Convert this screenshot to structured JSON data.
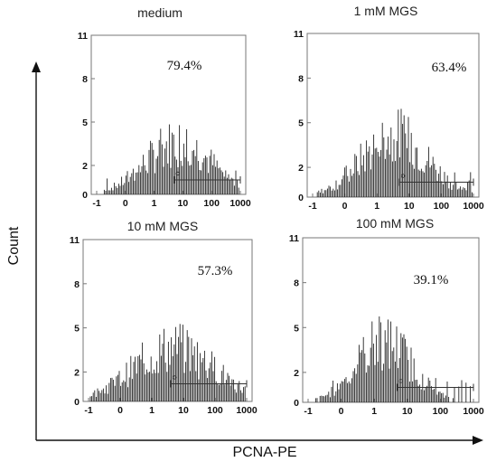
{
  "figure": {
    "ylabel": "Count",
    "xlabel": "PCNA-PE"
  },
  "chart_data": [
    {
      "type": "histogram",
      "title": "medium",
      "annotation": "79.4%",
      "x_scale": "log",
      "x_ticks": [
        "-1",
        "0",
        "1",
        "10",
        "100",
        "1000"
      ],
      "y_ticks": [
        0,
        2,
        5,
        8,
        11
      ],
      "ylim": [
        0,
        11
      ],
      "gate": {
        "from": 5,
        "to": 1000,
        "level": 1
      },
      "peak_x": 7,
      "peak_count": 4,
      "spread": 1.15
    },
    {
      "type": "histogram",
      "title": "1 mM MGS",
      "annotation": "63.4%",
      "x_scale": "log",
      "x_ticks": [
        "-1",
        "0",
        "1",
        "10",
        "100",
        "1000"
      ],
      "y_ticks": [
        0,
        2,
        5,
        8,
        11
      ],
      "ylim": [
        0,
        11
      ],
      "gate": {
        "from": 5,
        "to": 1000,
        "level": 1
      },
      "peak_x": 3.5,
      "peak_count": 4.5,
      "spread": 1.05
    },
    {
      "type": "histogram",
      "title": "10 mM MGS",
      "annotation": "57.3%",
      "x_scale": "log",
      "x_ticks": [
        "-1",
        "0",
        "1",
        "10",
        "100",
        "1000"
      ],
      "y_ticks": [
        0,
        2,
        5,
        8,
        11
      ],
      "ylim": [
        0,
        11
      ],
      "gate": {
        "from": 4,
        "to": 1000,
        "level": 1.2
      },
      "peak_x": 5,
      "peak_count": 4,
      "spread": 1.3
    },
    {
      "type": "histogram",
      "title": "100 mM MGS",
      "annotation": "39.1%",
      "x_scale": "log",
      "x_ticks": [
        "-1",
        "0",
        "1",
        "10",
        "100",
        "1000"
      ],
      "y_ticks": [
        0,
        2,
        5,
        8,
        11
      ],
      "ylim": [
        0,
        11
      ],
      "gate": {
        "from": 5,
        "to": 1000,
        "level": 1
      },
      "peak_x": 2,
      "peak_count": 4.5,
      "spread": 0.85
    }
  ]
}
